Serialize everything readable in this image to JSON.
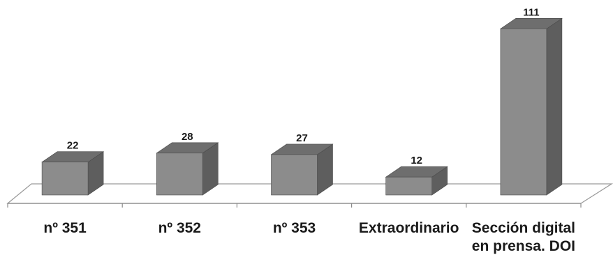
{
  "chart_data": {
    "type": "bar",
    "style": "3d-column",
    "categories": [
      [
        "nº 351"
      ],
      [
        "nº 352"
      ],
      [
        "nº 353"
      ],
      [
        "Extraordinario"
      ],
      [
        "Sección digital",
        "en prensa. DOI"
      ]
    ],
    "values": [
      22,
      28,
      27,
      12,
      111
    ],
    "title": "",
    "xlabel": "",
    "ylabel": "",
    "ylim": [
      0,
      120
    ],
    "grid": false,
    "legend": false,
    "data_labels": true,
    "colors": {
      "bar_front": "#8c8c8c",
      "bar_top": "#6e6e6e",
      "bar_side": "#5e5e5e",
      "floor_line": "#9a9a9a",
      "axis": "#8a8a8a"
    }
  }
}
